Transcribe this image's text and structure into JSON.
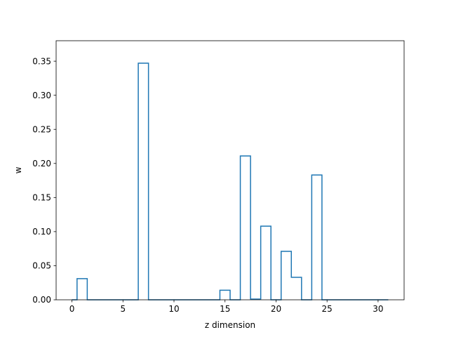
{
  "chart_data": {
    "type": "bar",
    "style": "step-histogram",
    "title": "",
    "xlabel": "z dimension",
    "ylabel": "w",
    "x": [
      0,
      1,
      2,
      3,
      4,
      5,
      6,
      7,
      8,
      9,
      10,
      11,
      12,
      13,
      14,
      15,
      16,
      17,
      18,
      19,
      20,
      21,
      22,
      23,
      24,
      25,
      26,
      27,
      28,
      29,
      30,
      31
    ],
    "values": [
      0,
      0.031,
      0,
      0,
      0,
      0,
      0,
      0.347,
      0,
      0,
      0,
      0,
      0,
      0,
      0,
      0.014,
      0,
      0.211,
      0.001,
      0.108,
      0,
      0.071,
      0.033,
      0,
      0.183,
      0,
      0,
      0,
      0,
      0,
      0,
      0
    ],
    "xlim": [
      -1.55,
      32.55
    ],
    "ylim": [
      0,
      0.38
    ],
    "xticks": [
      0,
      5,
      10,
      15,
      20,
      25,
      30
    ],
    "yticks": [
      0.0,
      0.05,
      0.1,
      0.15,
      0.2,
      0.25,
      0.3,
      0.35
    ],
    "xtick_labels": [
      "0",
      "5",
      "10",
      "15",
      "20",
      "25",
      "30"
    ],
    "ytick_labels": [
      "0.00",
      "0.05",
      "0.10",
      "0.15",
      "0.20",
      "0.25",
      "0.30",
      "0.35"
    ],
    "line_color": "#1f77b4",
    "grid": false
  }
}
